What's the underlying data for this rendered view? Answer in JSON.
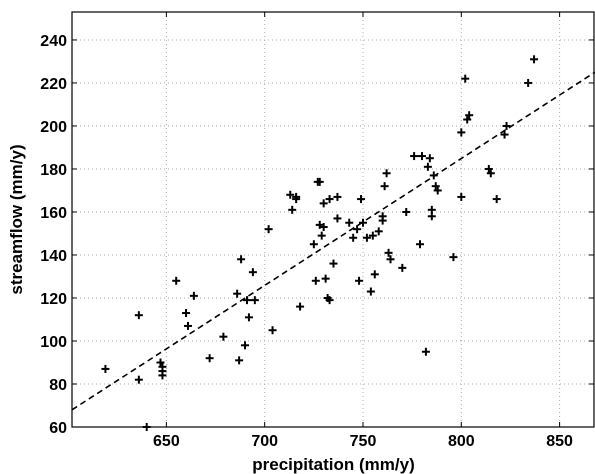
{
  "chart_data": {
    "type": "scatter",
    "title": "",
    "xlabel": "precipitation (mm/y)",
    "ylabel": "streamflow (mm/y)",
    "xlim": [
      602,
      868
    ],
    "ylim": [
      60,
      253
    ],
    "xticks": [
      650,
      700,
      750,
      800,
      850
    ],
    "yticks": [
      60,
      80,
      100,
      120,
      140,
      160,
      180,
      200,
      220,
      240
    ],
    "grid": true,
    "marker": "plus",
    "colors": {
      "points": "#000000",
      "fit_line": "#000000",
      "grid": "#aaaaaa"
    },
    "points": [
      [
        636,
        112
      ],
      [
        636,
        82
      ],
      [
        640,
        60
      ],
      [
        619,
        87
      ],
      [
        647,
        90
      ],
      [
        648,
        84
      ],
      [
        648,
        86
      ],
      [
        648,
        88
      ],
      [
        655,
        128
      ],
      [
        660,
        113
      ],
      [
        661,
        107
      ],
      [
        664,
        121
      ],
      [
        672,
        92
      ],
      [
        679,
        102
      ],
      [
        686,
        122
      ],
      [
        687,
        91
      ],
      [
        688,
        138
      ],
      [
        690,
        98
      ],
      [
        691,
        119
      ],
      [
        692,
        111
      ],
      [
        694,
        132
      ],
      [
        695,
        119
      ],
      [
        702,
        152
      ],
      [
        704,
        105
      ],
      [
        713,
        168
      ],
      [
        714,
        161
      ],
      [
        716,
        166
      ],
      [
        716,
        167
      ],
      [
        718,
        116
      ],
      [
        725,
        145
      ],
      [
        726,
        128
      ],
      [
        727,
        174
      ],
      [
        728,
        154
      ],
      [
        728,
        174
      ],
      [
        729,
        149
      ],
      [
        730,
        164
      ],
      [
        730,
        153
      ],
      [
        731,
        129
      ],
      [
        732,
        120
      ],
      [
        733,
        119
      ],
      [
        733,
        166
      ],
      [
        735,
        136
      ],
      [
        737,
        167
      ],
      [
        737,
        157
      ],
      [
        743,
        155
      ],
      [
        745,
        148
      ],
      [
        747,
        152
      ],
      [
        748,
        128
      ],
      [
        749,
        166
      ],
      [
        750,
        155
      ],
      [
        752,
        148
      ],
      [
        754,
        123
      ],
      [
        755,
        149
      ],
      [
        756,
        131
      ],
      [
        758,
        151
      ],
      [
        760,
        156
      ],
      [
        760,
        158
      ],
      [
        761,
        172
      ],
      [
        762,
        178
      ],
      [
        763,
        141
      ],
      [
        764,
        138
      ],
      [
        770,
        134
      ],
      [
        772,
        160
      ],
      [
        776,
        186
      ],
      [
        779,
        145
      ],
      [
        780,
        186
      ],
      [
        782,
        95
      ],
      [
        783,
        181
      ],
      [
        784,
        185
      ],
      [
        785,
        161
      ],
      [
        785,
        158
      ],
      [
        786,
        177
      ],
      [
        787,
        172
      ],
      [
        788,
        170
      ],
      [
        796,
        139
      ],
      [
        800,
        197
      ],
      [
        800,
        167
      ],
      [
        802,
        222
      ],
      [
        803,
        203
      ],
      [
        804,
        205
      ],
      [
        814,
        180
      ],
      [
        815,
        178
      ],
      [
        818,
        166
      ],
      [
        822,
        196
      ],
      [
        823,
        200
      ],
      [
        834,
        220
      ],
      [
        837,
        231
      ]
    ],
    "fit_line": {
      "style": "dashed",
      "from": [
        602,
        68
      ],
      "to": [
        868,
        225
      ]
    }
  }
}
